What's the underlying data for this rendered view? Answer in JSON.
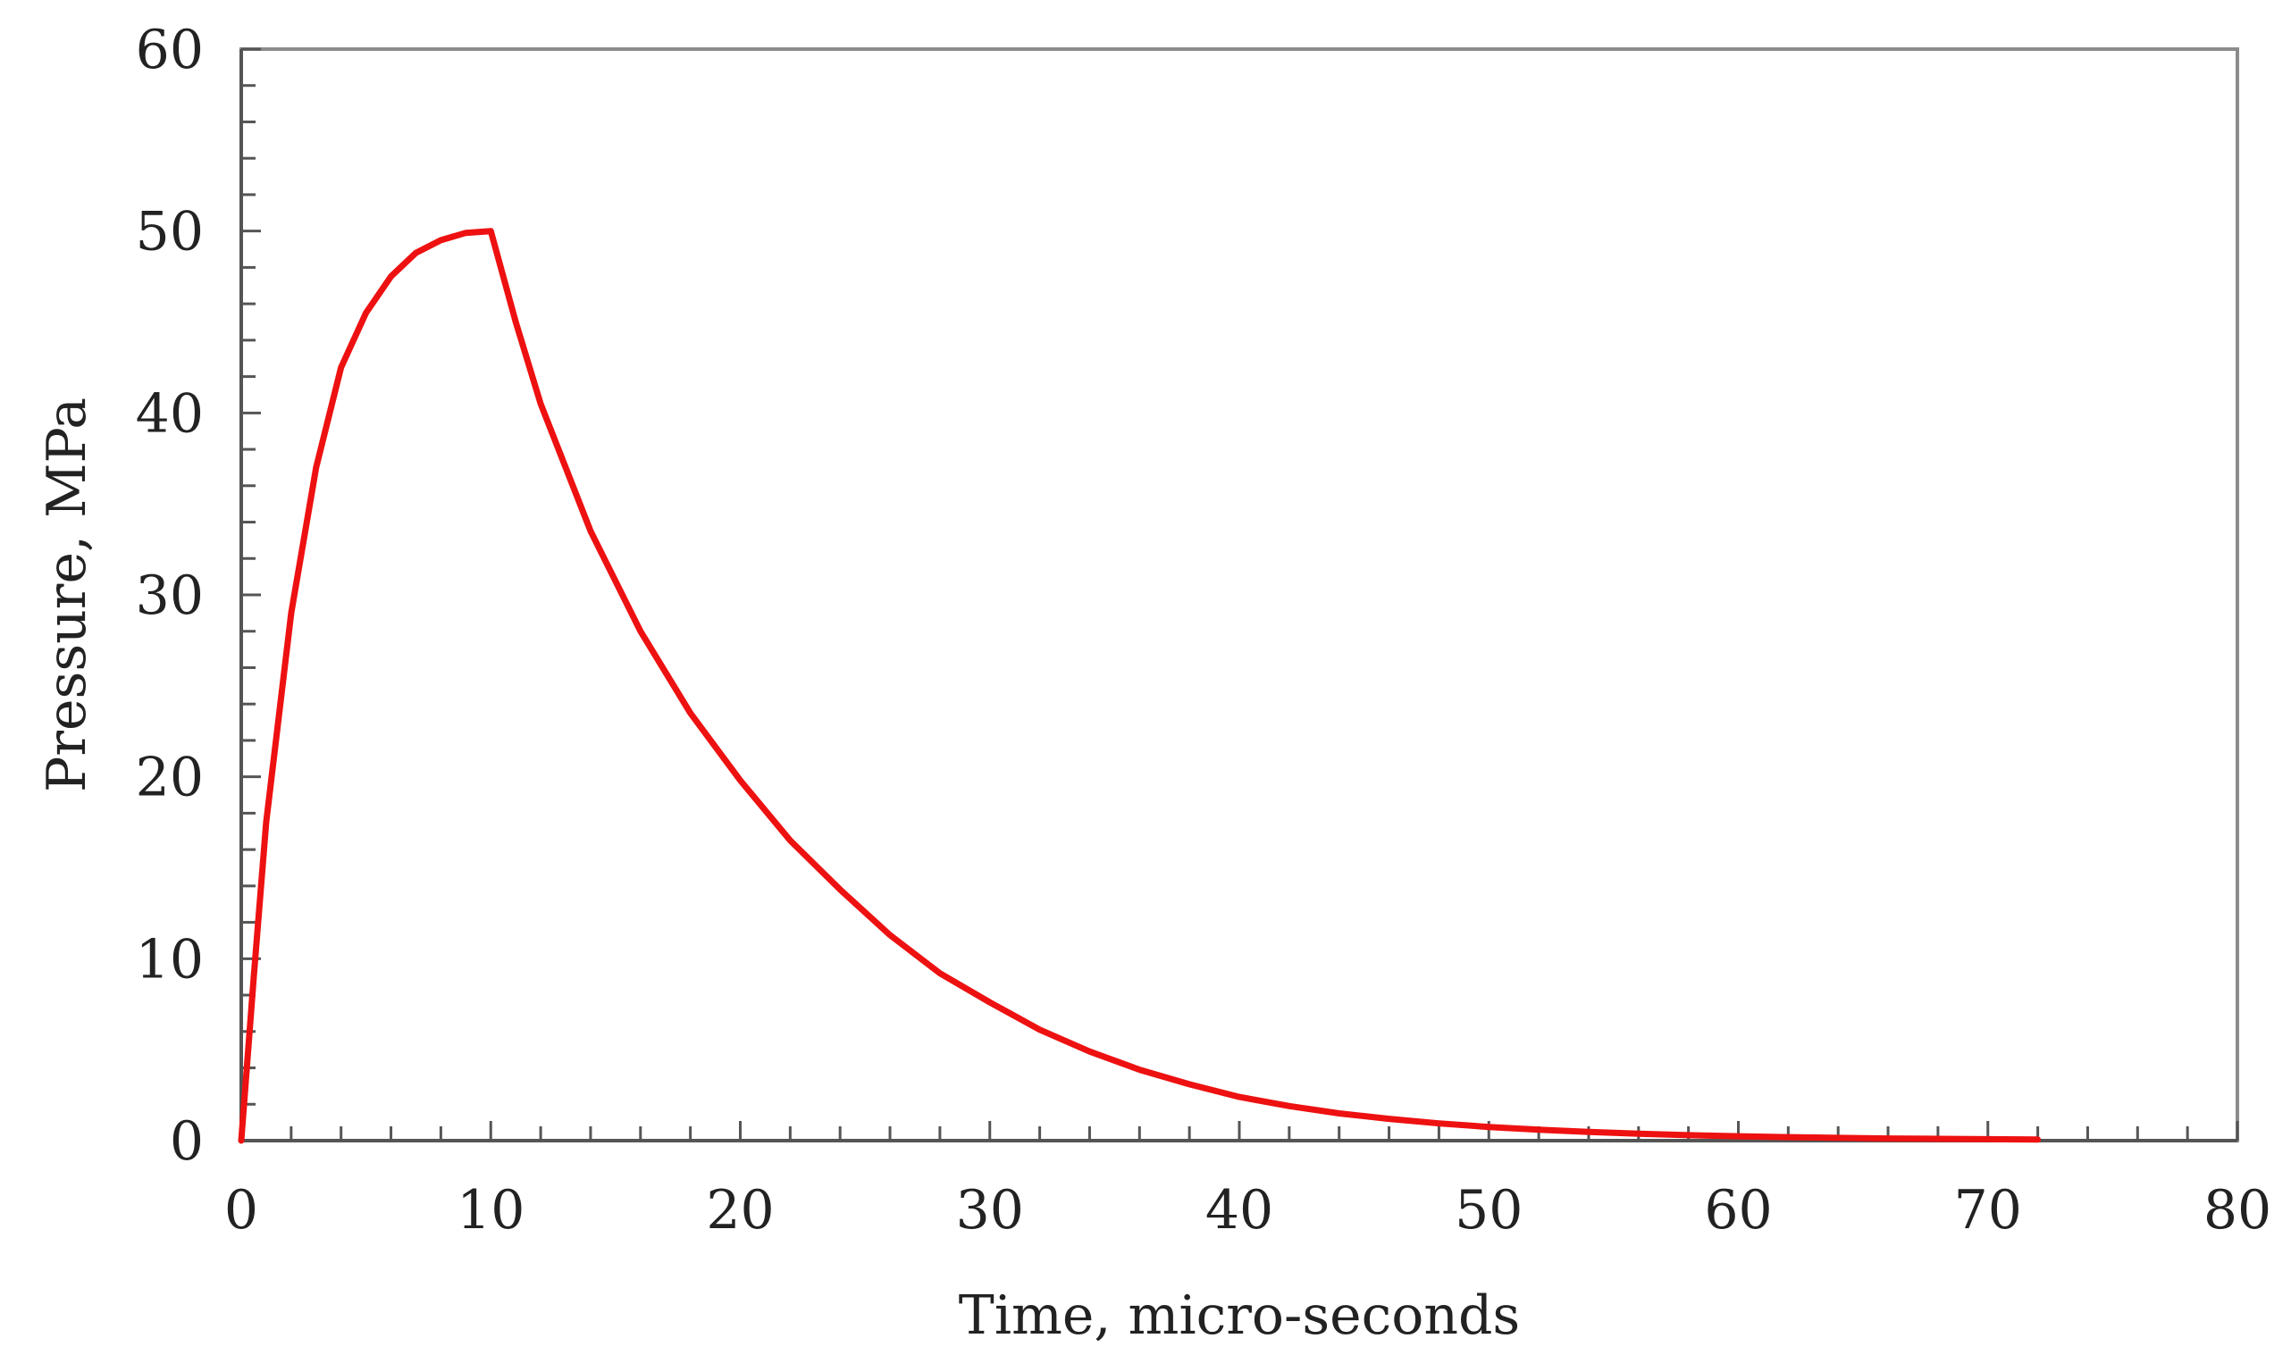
{
  "chart_data": {
    "type": "line",
    "title": "",
    "xlabel": "Time, micro-seconds",
    "ylabel": "Pressure, MPa",
    "xlim": [
      0,
      80
    ],
    "ylim": [
      0,
      60
    ],
    "x_major_ticks": [
      0,
      10,
      20,
      30,
      40,
      50,
      60,
      70,
      80
    ],
    "y_major_ticks": [
      0,
      10,
      20,
      30,
      40,
      50,
      60
    ],
    "x_tick_labels": [
      "0",
      "10",
      "20",
      "30",
      "40",
      "50",
      "60",
      "70",
      "80"
    ],
    "y_tick_labels": [
      "0",
      "10",
      "20",
      "30",
      "40",
      "50",
      "60"
    ],
    "x_minor_step": 2,
    "y_minor_step": 2,
    "grid": false,
    "legend": "none",
    "series": [
      {
        "name": "Pressure",
        "color": "#ee1111",
        "x": [
          0,
          0.5,
          1,
          2,
          3,
          4,
          5,
          6,
          7,
          8,
          9,
          10,
          11,
          12,
          14,
          16,
          18,
          20,
          22,
          24,
          26,
          28,
          30,
          32,
          34,
          36,
          38,
          40,
          42,
          44,
          46,
          48,
          50,
          52,
          54,
          56,
          58,
          60,
          62,
          64,
          66,
          68,
          70,
          72
        ],
        "values": [
          0,
          9,
          17.5,
          29,
          37,
          42.5,
          45.5,
          47.5,
          48.8,
          49.5,
          49.9,
          50,
          45,
          40.5,
          33.5,
          28,
          23.5,
          19.8,
          16.5,
          13.8,
          11.3,
          9.2,
          7.6,
          6.1,
          4.9,
          3.9,
          3.1,
          2.4,
          1.9,
          1.5,
          1.2,
          0.95,
          0.75,
          0.6,
          0.48,
          0.38,
          0.3,
          0.24,
          0.19,
          0.15,
          0.12,
          0.1,
          0.08,
          0.06
        ]
      }
    ]
  }
}
